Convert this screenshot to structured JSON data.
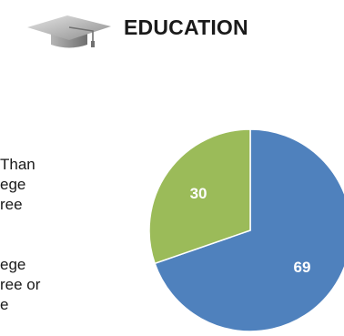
{
  "header": {
    "title": "EDUCATION",
    "icon": "graduation-cap-icon"
  },
  "legend": {
    "items": [
      {
        "lines": [
          "Than",
          "ege",
          "ree"
        ]
      },
      {
        "lines": [
          "ege",
          "ree or",
          "e"
        ]
      }
    ]
  },
  "chart_data": {
    "type": "pie",
    "slices": [
      {
        "value": 69,
        "label": "69",
        "color": "#4F81BD"
      },
      {
        "value": 30,
        "label": "30",
        "color": "#9BBB59"
      }
    ]
  }
}
